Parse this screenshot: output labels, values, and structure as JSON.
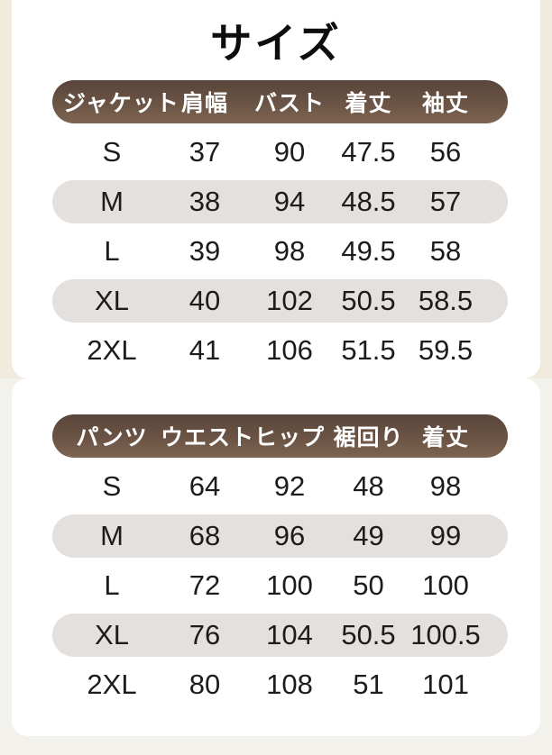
{
  "page": {
    "title": "サイズ",
    "colors": {
      "background_top": "#f0ebdd",
      "background_bottom": "#f3f1eb",
      "card": "#ffffff",
      "header_brown_dark": "#59453a",
      "header_brown_light": "#7e6451",
      "header_text": "#ffffff",
      "row_alt": "#e4e0dd",
      "body_text": "#1c1c1c",
      "title_text": "#0d0d0d"
    }
  },
  "tables": [
    {
      "name": "jacket",
      "headers": [
        "ジャケット",
        "肩幅",
        "バスト",
        "着丈",
        "袖丈"
      ],
      "rows": [
        [
          "S",
          "37",
          "90",
          "47.5",
          "56"
        ],
        [
          "M",
          "38",
          "94",
          "48.5",
          "57"
        ],
        [
          "L",
          "39",
          "98",
          "49.5",
          "58"
        ],
        [
          "XL",
          "40",
          "102",
          "50.5",
          "58.5"
        ],
        [
          "2XL",
          "41",
          "106",
          "51.5",
          "59.5"
        ]
      ]
    },
    {
      "name": "pants",
      "headers": [
        "パンツ",
        "ウエスト",
        "ヒップ",
        "裾回り",
        "着丈"
      ],
      "rows": [
        [
          "S",
          "64",
          "92",
          "48",
          "98"
        ],
        [
          "M",
          "68",
          "96",
          "49",
          "99"
        ],
        [
          "L",
          "72",
          "100",
          "50",
          "100"
        ],
        [
          "XL",
          "76",
          "104",
          "50.5",
          "100.5"
        ],
        [
          "2XL",
          "80",
          "108",
          "51",
          "101"
        ]
      ]
    }
  ],
  "chart_data": [
    {
      "type": "table",
      "title": "ジャケット",
      "columns": [
        "サイズ",
        "肩幅",
        "バスト",
        "着丈",
        "袖丈"
      ],
      "rows": [
        [
          "S",
          37,
          90,
          47.5,
          56
        ],
        [
          "M",
          38,
          94,
          48.5,
          57
        ],
        [
          "L",
          39,
          98,
          49.5,
          58
        ],
        [
          "XL",
          40,
          102,
          50.5,
          58.5
        ],
        [
          "2XL",
          41,
          106,
          51.5,
          59.5
        ]
      ]
    },
    {
      "type": "table",
      "title": "パンツ",
      "columns": [
        "サイズ",
        "ウエスト",
        "ヒップ",
        "裾回り",
        "着丈"
      ],
      "rows": [
        [
          "S",
          64,
          92,
          48,
          98
        ],
        [
          "M",
          68,
          96,
          49,
          99
        ],
        [
          "L",
          72,
          100,
          50,
          100
        ],
        [
          "XL",
          76,
          104,
          50.5,
          100.5
        ],
        [
          "2XL",
          80,
          108,
          51,
          101
        ]
      ]
    }
  ]
}
